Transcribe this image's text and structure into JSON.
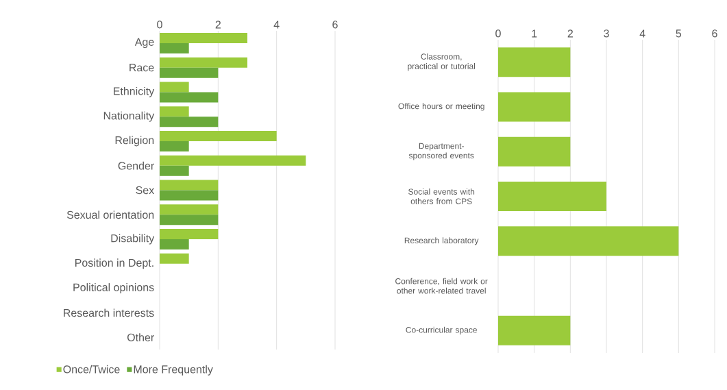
{
  "chart_data": [
    {
      "type": "bar",
      "orientation": "horizontal",
      "categories": [
        "Age",
        "Race",
        "Ethnicity",
        "Nationality",
        "Religion",
        "Gender",
        "Sex",
        "Sexual orientation",
        "Disability",
        "Position in Dept.",
        "Political opinions",
        "Research interests",
        "Other"
      ],
      "series": [
        {
          "name": "Once/Twice",
          "color": "#9bcb3b",
          "values": [
            3,
            3,
            1,
            1,
            4,
            5,
            2,
            2,
            2,
            1,
            0,
            0,
            0
          ]
        },
        {
          "name": "More Frequently",
          "color": "#6aaa3a",
          "values": [
            1,
            2,
            2,
            2,
            1,
            1,
            2,
            2,
            1,
            0,
            0,
            0,
            0
          ]
        }
      ],
      "xlim": [
        0,
        6
      ],
      "xticks": [
        0,
        2,
        4,
        6
      ],
      "grid": "x",
      "legend": "bottom"
    },
    {
      "type": "bar",
      "orientation": "horizontal",
      "categories": [
        "Classroom, practical or tutorial",
        "Office hours or meeting",
        "Department-sponsored events",
        "Social events with others from CPS",
        "Research laboratory",
        "Conference, field work or other work-related travel",
        "Co-curricular space"
      ],
      "series": [
        {
          "color": "#9bcb3b",
          "values": [
            2,
            2,
            2,
            3,
            5,
            0,
            2
          ]
        }
      ],
      "xlim": [
        0,
        6
      ],
      "xticks": [
        0,
        1,
        2,
        3,
        4,
        5,
        6
      ],
      "grid": "x"
    }
  ]
}
